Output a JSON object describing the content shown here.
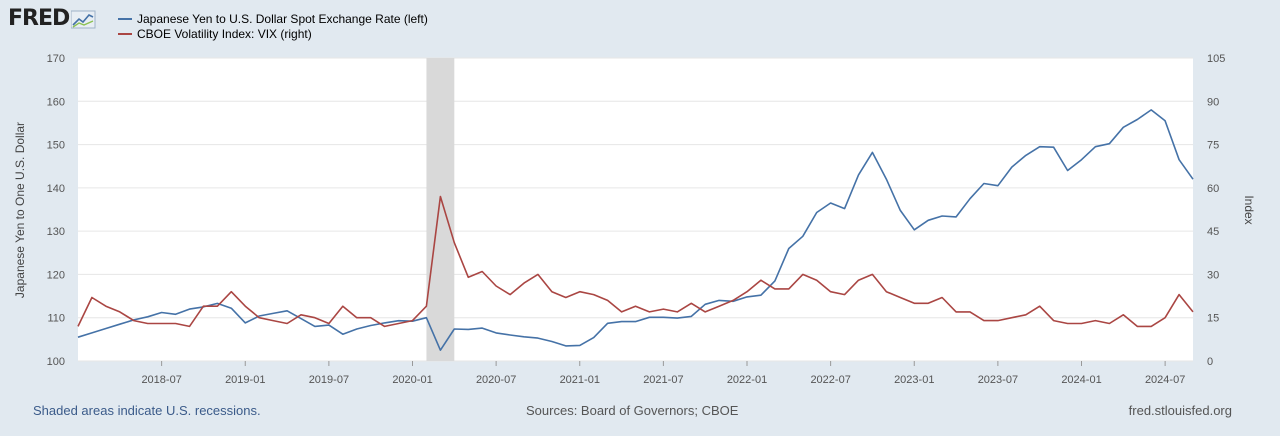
{
  "logo": {
    "text": "FRED",
    "icon": "chart-line-icon"
  },
  "legend": [
    {
      "label": "Japanese Yen to U.S. Dollar Spot Exchange Rate (left)",
      "color": "#4572a7"
    },
    {
      "label": "CBOE Volatility Index: VIX (right)",
      "color": "#aa4643"
    }
  ],
  "footer": {
    "note": "Shaded areas indicate U.S. recessions.",
    "sources": "Sources: Board of Governors; CBOE",
    "site": "fred.stlouisfed.org"
  },
  "chart_data": {
    "type": "line",
    "title": "",
    "xlabel": "",
    "ylabel_left": "Japanese Yen to One U.S. Dollar",
    "ylabel_right": "Index",
    "x_ticks": [
      "2018-07",
      "2019-01",
      "2019-07",
      "2020-01",
      "2020-07",
      "2021-01",
      "2021-07",
      "2022-01",
      "2022-07",
      "2023-01",
      "2023-07",
      "2024-01",
      "2024-07"
    ],
    "x_range": [
      "2018-01",
      "2024-09"
    ],
    "y_left_range": [
      100,
      170
    ],
    "y_left_ticks": [
      "100",
      "110",
      "120",
      "130",
      "140",
      "150",
      "160",
      "170"
    ],
    "y_right_range": [
      0,
      105
    ],
    "y_right_ticks": [
      "0",
      "15",
      "30",
      "45",
      "60",
      "75",
      "90",
      "105"
    ],
    "recessions": [
      {
        "start": "2020-02",
        "end": "2020-04"
      }
    ],
    "series": [
      {
        "name": "Japanese Yen to U.S. Dollar Spot Exchange Rate (left)",
        "axis": "left",
        "color": "#4572a7",
        "points": [
          [
            "2018-01",
            105.5
          ],
          [
            "2018-02",
            106.5
          ],
          [
            "2018-03",
            107.5
          ],
          [
            "2018-04",
            108.5
          ],
          [
            "2018-05",
            109.5
          ],
          [
            "2018-06",
            110.2
          ],
          [
            "2018-07",
            111.2
          ],
          [
            "2018-08",
            110.8
          ],
          [
            "2018-09",
            112.0
          ],
          [
            "2018-10",
            112.5
          ],
          [
            "2018-11",
            113.3
          ],
          [
            "2018-12",
            112.2
          ],
          [
            "2019-01",
            108.8
          ],
          [
            "2019-02",
            110.4
          ],
          [
            "2019-03",
            111.0
          ],
          [
            "2019-04",
            111.6
          ],
          [
            "2019-05",
            109.8
          ],
          [
            "2019-06",
            108.0
          ],
          [
            "2019-07",
            108.3
          ],
          [
            "2019-08",
            106.2
          ],
          [
            "2019-09",
            107.4
          ],
          [
            "2019-10",
            108.2
          ],
          [
            "2019-11",
            108.8
          ],
          [
            "2019-12",
            109.3
          ],
          [
            "2020-01",
            109.2
          ],
          [
            "2020-02",
            110.0
          ],
          [
            "2020-03",
            102.5
          ],
          [
            "2020-04",
            107.4
          ],
          [
            "2020-05",
            107.3
          ],
          [
            "2020-06",
            107.6
          ],
          [
            "2020-07",
            106.5
          ],
          [
            "2020-08",
            106.0
          ],
          [
            "2020-09",
            105.6
          ],
          [
            "2020-10",
            105.3
          ],
          [
            "2020-11",
            104.5
          ],
          [
            "2020-12",
            103.5
          ],
          [
            "2021-01",
            103.6
          ],
          [
            "2021-02",
            105.4
          ],
          [
            "2021-03",
            108.7
          ],
          [
            "2021-04",
            109.1
          ],
          [
            "2021-05",
            109.1
          ],
          [
            "2021-06",
            110.1
          ],
          [
            "2021-07",
            110.1
          ],
          [
            "2021-08",
            109.9
          ],
          [
            "2021-09",
            110.3
          ],
          [
            "2021-10",
            113.1
          ],
          [
            "2021-11",
            114.0
          ],
          [
            "2021-12",
            113.8
          ],
          [
            "2022-01",
            114.8
          ],
          [
            "2022-02",
            115.2
          ],
          [
            "2022-03",
            118.5
          ],
          [
            "2022-04",
            126.0
          ],
          [
            "2022-05",
            128.8
          ],
          [
            "2022-06",
            134.3
          ],
          [
            "2022-07",
            136.5
          ],
          [
            "2022-08",
            135.2
          ],
          [
            "2022-09",
            143.0
          ],
          [
            "2022-10",
            148.2
          ],
          [
            "2022-11",
            142.0
          ],
          [
            "2022-12",
            134.8
          ],
          [
            "2023-01",
            130.3
          ],
          [
            "2023-02",
            132.5
          ],
          [
            "2023-03",
            133.5
          ],
          [
            "2023-04",
            133.3
          ],
          [
            "2023-05",
            137.5
          ],
          [
            "2023-06",
            141.0
          ],
          [
            "2023-07",
            140.5
          ],
          [
            "2023-08",
            144.8
          ],
          [
            "2023-09",
            147.5
          ],
          [
            "2023-10",
            149.5
          ],
          [
            "2023-11",
            149.4
          ],
          [
            "2023-12",
            144.0
          ],
          [
            "2024-01",
            146.5
          ],
          [
            "2024-02",
            149.5
          ],
          [
            "2024-03",
            150.2
          ],
          [
            "2024-04",
            154.0
          ],
          [
            "2024-05",
            155.8
          ],
          [
            "2024-06",
            158.0
          ],
          [
            "2024-07",
            155.5
          ],
          [
            "2024-08",
            146.5
          ],
          [
            "2024-09",
            142.0
          ]
        ]
      },
      {
        "name": "CBOE Volatility Index: VIX (right)",
        "axis": "right",
        "color": "#aa4643",
        "points": [
          [
            "2018-01",
            12
          ],
          [
            "2018-02",
            22
          ],
          [
            "2018-03",
            19
          ],
          [
            "2018-04",
            17
          ],
          [
            "2018-05",
            14
          ],
          [
            "2018-06",
            13
          ],
          [
            "2018-07",
            13
          ],
          [
            "2018-08",
            13
          ],
          [
            "2018-09",
            12
          ],
          [
            "2018-10",
            19
          ],
          [
            "2018-11",
            19
          ],
          [
            "2018-12",
            24
          ],
          [
            "2019-01",
            19
          ],
          [
            "2019-02",
            15
          ],
          [
            "2019-03",
            14
          ],
          [
            "2019-04",
            13
          ],
          [
            "2019-05",
            16
          ],
          [
            "2019-06",
            15
          ],
          [
            "2019-07",
            13
          ],
          [
            "2019-08",
            19
          ],
          [
            "2019-09",
            15
          ],
          [
            "2019-10",
            15
          ],
          [
            "2019-11",
            12
          ],
          [
            "2019-12",
            13
          ],
          [
            "2020-01",
            14
          ],
          [
            "2020-02",
            19
          ],
          [
            "2020-03",
            57
          ],
          [
            "2020-04",
            41
          ],
          [
            "2020-05",
            29
          ],
          [
            "2020-06",
            31
          ],
          [
            "2020-07",
            26
          ],
          [
            "2020-08",
            23
          ],
          [
            "2020-09",
            27
          ],
          [
            "2020-10",
            30
          ],
          [
            "2020-11",
            24
          ],
          [
            "2020-12",
            22
          ],
          [
            "2021-01",
            24
          ],
          [
            "2021-02",
            23
          ],
          [
            "2021-03",
            21
          ],
          [
            "2021-04",
            17
          ],
          [
            "2021-05",
            19
          ],
          [
            "2021-06",
            17
          ],
          [
            "2021-07",
            18
          ],
          [
            "2021-08",
            17
          ],
          [
            "2021-09",
            20
          ],
          [
            "2021-10",
            17
          ],
          [
            "2021-11",
            19
          ],
          [
            "2021-12",
            21
          ],
          [
            "2022-01",
            24
          ],
          [
            "2022-02",
            28
          ],
          [
            "2022-03",
            25
          ],
          [
            "2022-04",
            25
          ],
          [
            "2022-05",
            30
          ],
          [
            "2022-06",
            28
          ],
          [
            "2022-07",
            24
          ],
          [
            "2022-08",
            23
          ],
          [
            "2022-09",
            28
          ],
          [
            "2022-10",
            30
          ],
          [
            "2022-11",
            24
          ],
          [
            "2022-12",
            22
          ],
          [
            "2023-01",
            20
          ],
          [
            "2023-02",
            20
          ],
          [
            "2023-03",
            22
          ],
          [
            "2023-04",
            17
          ],
          [
            "2023-05",
            17
          ],
          [
            "2023-06",
            14
          ],
          [
            "2023-07",
            14
          ],
          [
            "2023-08",
            15
          ],
          [
            "2023-09",
            16
          ],
          [
            "2023-10",
            19
          ],
          [
            "2023-11",
            14
          ],
          [
            "2023-12",
            13
          ],
          [
            "2024-01",
            13
          ],
          [
            "2024-02",
            14
          ],
          [
            "2024-03",
            13
          ],
          [
            "2024-04",
            16
          ],
          [
            "2024-05",
            12
          ],
          [
            "2024-06",
            12
          ],
          [
            "2024-07",
            15
          ],
          [
            "2024-08",
            23
          ],
          [
            "2024-09",
            17
          ]
        ]
      }
    ]
  }
}
